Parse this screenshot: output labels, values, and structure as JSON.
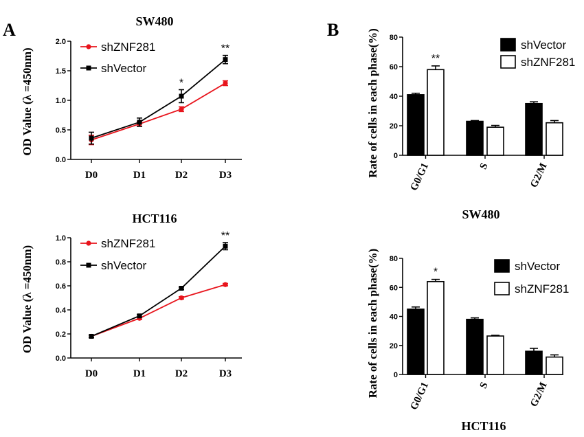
{
  "panels": [
    {
      "letter": "A"
    },
    {
      "letter": "B"
    }
  ],
  "chart_data": [
    {
      "type": "line",
      "title": "SW480",
      "ylabel": "OD Value (λ =450nm)",
      "xlabel": "",
      "categories": [
        "D0",
        "D1",
        "D2",
        "D3"
      ],
      "ylim": [
        0,
        2.0
      ],
      "yticks": [
        "0.0",
        "0.5",
        "1.0",
        "1.5",
        "2.0"
      ],
      "legend_position": "top-left",
      "grid": false,
      "series": [
        {
          "name": "shZNF281",
          "color": "#e8141c",
          "marker": "circle",
          "values": [
            0.33,
            0.6,
            0.85,
            1.29
          ],
          "errors": [
            0.08,
            0.04,
            0.04,
            0.04
          ]
        },
        {
          "name": "shVector",
          "color": "#000000",
          "marker": "square",
          "values": [
            0.36,
            0.63,
            1.07,
            1.69
          ],
          "errors": [
            0.1,
            0.07,
            0.11,
            0.07
          ]
        }
      ],
      "significance": [
        "",
        "",
        "*",
        "**"
      ]
    },
    {
      "type": "line",
      "title": "HCT116",
      "ylabel": "OD Value (λ =450nm)",
      "xlabel": "",
      "categories": [
        "D0",
        "D1",
        "D2",
        "D3"
      ],
      "ylim": [
        0,
        1.0
      ],
      "yticks": [
        "0.0",
        "0.2",
        "0.4",
        "0.6",
        "0.8",
        "1.0"
      ],
      "legend_position": "top-left",
      "grid": false,
      "series": [
        {
          "name": "shZNF281",
          "color": "#e8141c",
          "marker": "circle",
          "values": [
            0.18,
            0.33,
            0.5,
            0.61
          ],
          "errors": [
            0.01,
            0.01,
            0.01,
            0.01
          ]
        },
        {
          "name": "shVector",
          "color": "#000000",
          "marker": "square",
          "values": [
            0.18,
            0.35,
            0.58,
            0.93
          ],
          "errors": [
            0.01,
            0.01,
            0.01,
            0.03
          ]
        }
      ],
      "significance": [
        "",
        "",
        "",
        "**"
      ]
    },
    {
      "type": "bar",
      "title": "SW480",
      "ylabel": "Rate of cells in each phase(%)",
      "xlabel": "",
      "categories": [
        "G0/G1",
        "S",
        "G2/M"
      ],
      "ylim": [
        0,
        80
      ],
      "yticks": [
        "0",
        "20",
        "40",
        "60",
        "80"
      ],
      "legend_position": "top-right",
      "grid": false,
      "series": [
        {
          "name": "shVector",
          "fill": "#000000",
          "values": [
            41,
            23,
            35
          ],
          "errors": [
            1.0,
            0.5,
            1.2
          ]
        },
        {
          "name": "shZNF281",
          "fill": "#ffffff",
          "values": [
            58,
            19,
            22
          ],
          "errors": [
            2.5,
            1.2,
            1.5
          ]
        }
      ],
      "significance": [
        "**",
        "",
        ""
      ]
    },
    {
      "type": "bar",
      "title": "HCT116",
      "ylabel": "Rate of cells in each phase(%)",
      "xlabel": "",
      "categories": [
        "G0/G1",
        "S",
        "G2/M"
      ],
      "ylim": [
        0,
        80
      ],
      "yticks": [
        "0",
        "20",
        "40",
        "60",
        "80"
      ],
      "legend_position": "top-right",
      "grid": false,
      "series": [
        {
          "name": "shVector",
          "fill": "#000000",
          "values": [
            45,
            38,
            16
          ],
          "errors": [
            1.5,
            1.0,
            2.0
          ]
        },
        {
          "name": "shZNF281",
          "fill": "#ffffff",
          "values": [
            64,
            26.5,
            12
          ],
          "errors": [
            1.5,
            0.5,
            1.5
          ]
        }
      ],
      "significance": [
        "*",
        "",
        ""
      ]
    }
  ]
}
